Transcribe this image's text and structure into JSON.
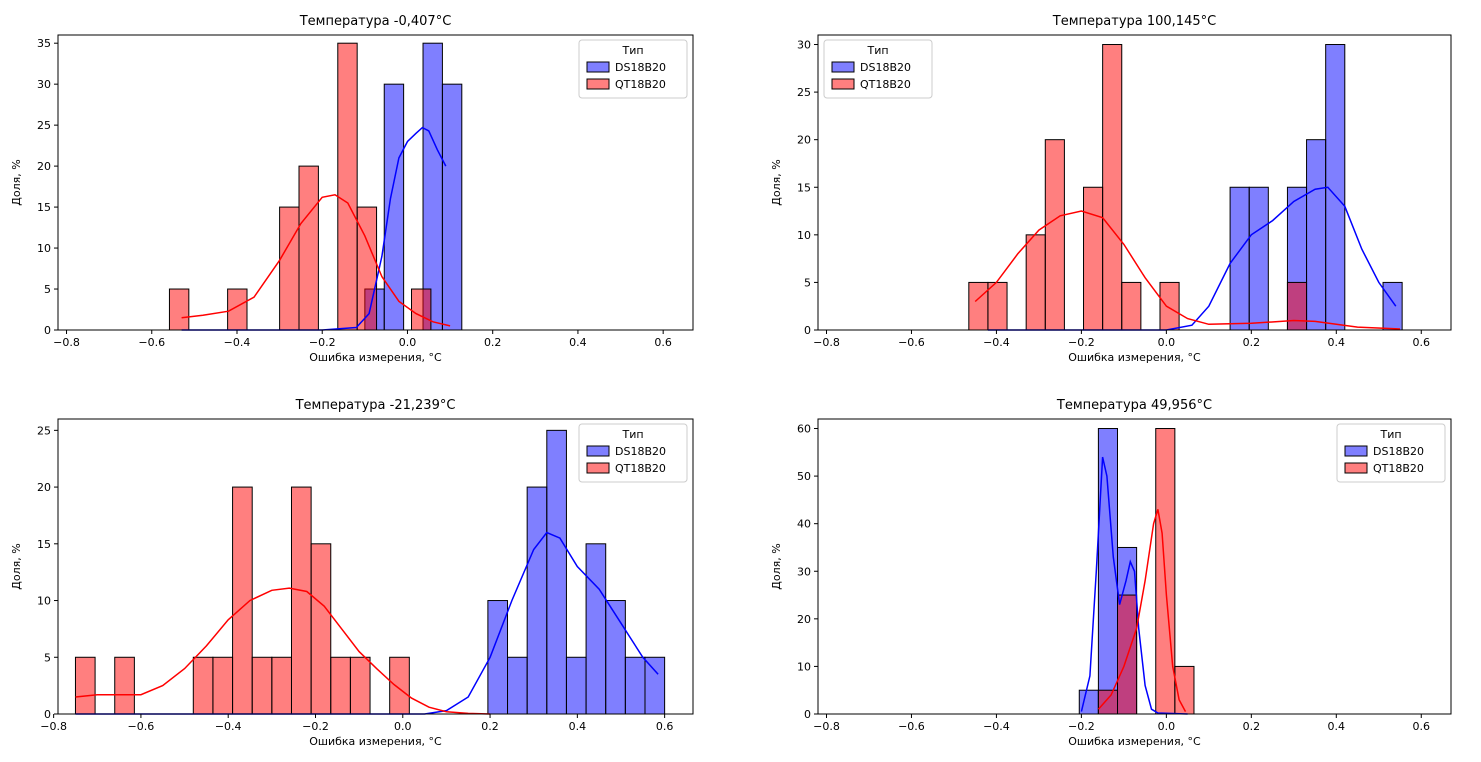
{
  "figure": {
    "xlabel": "Ошибка измерения, °С",
    "ylabel": "Доля, %"
  },
  "chart_data": [
    {
      "type": "histogram",
      "title": "Температура -0,407°С",
      "xlabel": "Ошибка измерения, °С",
      "ylabel": "Доля, %",
      "xlim": [
        -0.82,
        0.67
      ],
      "ylim": [
        0,
        36
      ],
      "xticks": [
        -0.8,
        -0.6,
        -0.4,
        -0.2,
        0.0,
        0.2,
        0.4,
        0.6
      ],
      "xtick_labels": [
        "−0.8",
        "−0.6",
        "−0.4",
        "−0.2",
        "0.0",
        "0.2",
        "0.4",
        "0.6"
      ],
      "yticks": [
        0,
        5,
        10,
        15,
        20,
        25,
        30,
        35
      ],
      "ytick_labels": [
        "0",
        "5",
        "10",
        "15",
        "20",
        "25",
        "30",
        "35"
      ],
      "legend": {
        "title": "Тип",
        "position": "upper-right"
      },
      "series": [
        {
          "name": "DS18B20",
          "color": "#0000ff",
          "bins": [
            [
              -0.1,
              -0.0545,
              5
            ],
            [
              -0.0545,
              -0.009,
              30
            ],
            [
              0.0365,
              0.082,
              35
            ],
            [
              0.082,
              0.1275,
              30
            ]
          ],
          "kde": [
            [
              -0.53,
              0
            ],
            [
              -0.2,
              0
            ],
            [
              -0.12,
              0.3
            ],
            [
              -0.09,
              2
            ],
            [
              -0.06,
              9
            ],
            [
              -0.04,
              16
            ],
            [
              -0.02,
              21
            ],
            [
              0,
              23
            ],
            [
              0.02,
              24
            ],
            [
              0.035,
              24.7
            ],
            [
              0.05,
              24.3
            ],
            [
              0.07,
              22
            ],
            [
              0.09,
              20
            ]
          ]
        },
        {
          "name": "QT18B20",
          "color": "#ff0000",
          "bins": [
            [
              -0.5585,
              -0.513,
              5
            ],
            [
              -0.422,
              -0.3765,
              5
            ],
            [
              -0.3,
              -0.2545,
              15
            ],
            [
              -0.2545,
              -0.209,
              20
            ],
            [
              -0.1635,
              -0.118,
              35
            ],
            [
              -0.118,
              -0.0725,
              15
            ],
            [
              0.0095,
              0.055,
              5
            ]
          ],
          "kde": [
            [
              -0.53,
              1.5
            ],
            [
              -0.48,
              1.8
            ],
            [
              -0.42,
              2.3
            ],
            [
              -0.36,
              4
            ],
            [
              -0.3,
              8.5
            ],
            [
              -0.25,
              13
            ],
            [
              -0.2,
              16.2
            ],
            [
              -0.17,
              16.5
            ],
            [
              -0.14,
              15.5
            ],
            [
              -0.1,
              11.5
            ],
            [
              -0.06,
              6.5
            ],
            [
              -0.02,
              3.5
            ],
            [
              0.02,
              2
            ],
            [
              0.06,
              1
            ],
            [
              0.1,
              0.5
            ]
          ]
        }
      ]
    },
    {
      "type": "histogram",
      "title": "Температура 100,145°С",
      "xlabel": "Ошибка измерения, °С",
      "ylabel": "Доля, %",
      "xlim": [
        -0.82,
        0.67
      ],
      "ylim": [
        0,
        31
      ],
      "xticks": [
        -0.8,
        -0.6,
        -0.4,
        -0.2,
        0.0,
        0.2,
        0.4,
        0.6
      ],
      "xtick_labels": [
        "−0.8",
        "−0.6",
        "−0.4",
        "−0.2",
        "0.0",
        "0.2",
        "0.4",
        "0.6"
      ],
      "yticks": [
        0,
        5,
        10,
        15,
        20,
        25,
        30
      ],
      "ytick_labels": [
        "0",
        "5",
        "10",
        "15",
        "20",
        "25",
        "30"
      ],
      "legend": {
        "title": "Тип",
        "position": "upper-left"
      },
      "series": [
        {
          "name": "DS18B20",
          "color": "#0000ff",
          "bins": [
            [
              0.15,
              0.195,
              15
            ],
            [
              0.195,
              0.24,
              15
            ],
            [
              0.285,
              0.33,
              15
            ],
            [
              0.33,
              0.375,
              20
            ],
            [
              0.375,
              0.42,
              30
            ],
            [
              0.51,
              0.555,
              5
            ]
          ],
          "kde": [
            [
              -0.42,
              0
            ],
            [
              0.0,
              0
            ],
            [
              0.06,
              0.5
            ],
            [
              0.1,
              2.5
            ],
            [
              0.15,
              7
            ],
            [
              0.2,
              10
            ],
            [
              0.25,
              11.5
            ],
            [
              0.3,
              13.5
            ],
            [
              0.35,
              14.8
            ],
            [
              0.38,
              15
            ],
            [
              0.42,
              13
            ],
            [
              0.46,
              8.5
            ],
            [
              0.5,
              5
            ],
            [
              0.54,
              2.5
            ]
          ]
        },
        {
          "name": "QT18B20",
          "color": "#ff0000",
          "bins": [
            [
              -0.465,
              -0.42,
              5
            ],
            [
              -0.42,
              -0.375,
              5
            ],
            [
              -0.33,
              -0.285,
              10
            ],
            [
              -0.285,
              -0.24,
              20
            ],
            [
              -0.195,
              -0.15,
              15
            ],
            [
              -0.15,
              -0.105,
              30
            ],
            [
              -0.105,
              -0.06,
              5
            ],
            [
              -0.015,
              0.03,
              5
            ],
            [
              0.285,
              0.33,
              5
            ]
          ],
          "kde": [
            [
              -0.45,
              3
            ],
            [
              -0.4,
              5
            ],
            [
              -0.35,
              8
            ],
            [
              -0.3,
              10.5
            ],
            [
              -0.25,
              12
            ],
            [
              -0.2,
              12.5
            ],
            [
              -0.15,
              11.8
            ],
            [
              -0.1,
              9
            ],
            [
              -0.05,
              5.5
            ],
            [
              0,
              2.5
            ],
            [
              0.05,
              1.2
            ],
            [
              0.1,
              0.6
            ],
            [
              0.2,
              0.7
            ],
            [
              0.3,
              1
            ],
            [
              0.35,
              0.9
            ],
            [
              0.45,
              0.3
            ],
            [
              0.55,
              0.1
            ]
          ]
        }
      ]
    },
    {
      "type": "histogram",
      "title": "Температура -21,239°С",
      "xlabel": "Ошибка измерения, °С",
      "ylabel": "Доля, %",
      "xlim": [
        -0.79,
        0.665
      ],
      "ylim": [
        0,
        26
      ],
      "xticks": [
        -0.8,
        -0.6,
        -0.4,
        -0.2,
        0.0,
        0.2,
        0.4,
        0.6
      ],
      "xtick_labels": [
        "−0.8",
        "−0.6",
        "−0.4",
        "−0.2",
        "0.0",
        "0.2",
        "0.4",
        "0.6"
      ],
      "yticks": [
        0,
        5,
        10,
        15,
        20,
        25
      ],
      "ytick_labels": [
        "0",
        "5",
        "10",
        "15",
        "20",
        "25"
      ],
      "legend": {
        "title": "Тип",
        "position": "upper-right"
      },
      "series": [
        {
          "name": "DS18B20",
          "color": "#0000ff",
          "bins": [
            [
              0.195,
              0.24,
              10
            ],
            [
              0.24,
              0.285,
              5
            ],
            [
              0.285,
              0.33,
              20
            ],
            [
              0.33,
              0.375,
              25
            ],
            [
              0.375,
              0.42,
              5
            ],
            [
              0.42,
              0.465,
              15
            ],
            [
              0.465,
              0.51,
              10
            ],
            [
              0.51,
              0.555,
              5
            ],
            [
              0.555,
              0.6,
              5
            ]
          ],
          "kde": [
            [
              -0.75,
              0
            ],
            [
              0.05,
              0
            ],
            [
              0.1,
              0.3
            ],
            [
              0.15,
              1.5
            ],
            [
              0.2,
              5
            ],
            [
              0.25,
              10
            ],
            [
              0.3,
              14.5
            ],
            [
              0.33,
              16
            ],
            [
              0.36,
              15.5
            ],
            [
              0.4,
              13
            ],
            [
              0.45,
              11
            ],
            [
              0.5,
              8
            ],
            [
              0.55,
              5
            ],
            [
              0.585,
              3.5
            ]
          ]
        },
        {
          "name": "QT18B20",
          "color": "#ff0000",
          "bins": [
            [
              -0.75,
              -0.705,
              5
            ],
            [
              -0.66,
              -0.615,
              5
            ],
            [
              -0.48,
              -0.435,
              5
            ],
            [
              -0.435,
              -0.39,
              5
            ],
            [
              -0.39,
              -0.345,
              20
            ],
            [
              -0.345,
              -0.3,
              5
            ],
            [
              -0.3,
              -0.255,
              5
            ],
            [
              -0.255,
              -0.21,
              20
            ],
            [
              -0.21,
              -0.165,
              15
            ],
            [
              -0.165,
              -0.12,
              5
            ],
            [
              -0.12,
              -0.075,
              5
            ],
            [
              -0.03,
              0.015,
              5
            ]
          ],
          "kde": [
            [
              -0.75,
              1.5
            ],
            [
              -0.7,
              1.7
            ],
            [
              -0.65,
              1.7
            ],
            [
              -0.6,
              1.7
            ],
            [
              -0.55,
              2.5
            ],
            [
              -0.5,
              4
            ],
            [
              -0.45,
              6
            ],
            [
              -0.4,
              8.3
            ],
            [
              -0.35,
              10
            ],
            [
              -0.3,
              10.9
            ],
            [
              -0.26,
              11.1
            ],
            [
              -0.22,
              10.8
            ],
            [
              -0.18,
              9.5
            ],
            [
              -0.14,
              7.5
            ],
            [
              -0.1,
              5.5
            ],
            [
              -0.06,
              4
            ],
            [
              -0.02,
              2.6
            ],
            [
              0.02,
              1.4
            ],
            [
              0.06,
              0.6
            ],
            [
              0.1,
              0.2
            ],
            [
              0.15,
              0.05
            ],
            [
              0.2,
              0
            ]
          ]
        }
      ]
    },
    {
      "type": "histogram",
      "title": "Температура 49,956°С",
      "xlabel": "Ошибка измерения, °С",
      "ylabel": "Доля, %",
      "xlim": [
        -0.82,
        0.67
      ],
      "ylim": [
        0,
        62
      ],
      "xticks": [
        -0.8,
        -0.6,
        -0.4,
        -0.2,
        0.0,
        0.2,
        0.4,
        0.6
      ],
      "xtick_labels": [
        "−0.8",
        "−0.6",
        "−0.4",
        "−0.2",
        "0.0",
        "0.2",
        "0.4",
        "0.6"
      ],
      "yticks": [
        0,
        10,
        20,
        30,
        40,
        50,
        60
      ],
      "ytick_labels": [
        "0",
        "10",
        "20",
        "30",
        "40",
        "50",
        "60"
      ],
      "legend": {
        "title": "Тип",
        "position": "upper-right"
      },
      "series": [
        {
          "name": "DS18B20",
          "color": "#0000ff",
          "bins": [
            [
              -0.205,
              -0.16,
              5
            ],
            [
              -0.16,
              -0.115,
              60
            ],
            [
              -0.115,
              -0.07,
              35
            ]
          ],
          "kde": [
            [
              -0.2,
              0.5
            ],
            [
              -0.18,
              8
            ],
            [
              -0.165,
              30
            ],
            [
              -0.15,
              54
            ],
            [
              -0.14,
              50
            ],
            [
              -0.125,
              33
            ],
            [
              -0.11,
              23
            ],
            [
              -0.095,
              28
            ],
            [
              -0.085,
              32
            ],
            [
              -0.075,
              30
            ],
            [
              -0.065,
              18
            ],
            [
              -0.05,
              6
            ],
            [
              -0.035,
              1
            ],
            [
              -0.02,
              0.2
            ],
            [
              0.05,
              0
            ]
          ]
        },
        {
          "name": "QT18B20",
          "color": "#ff0000",
          "bins": [
            [
              -0.16,
              -0.115,
              5
            ],
            [
              -0.115,
              -0.07,
              25
            ],
            [
              -0.07,
              -0.025,
              0
            ],
            [
              -0.025,
              0.02,
              60
            ],
            [
              0.02,
              0.065,
              10
            ]
          ],
          "kde": [
            [
              -0.16,
              1
            ],
            [
              -0.13,
              4
            ],
            [
              -0.1,
              10
            ],
            [
              -0.07,
              18
            ],
            [
              -0.05,
              28
            ],
            [
              -0.03,
              40
            ],
            [
              -0.02,
              43
            ],
            [
              -0.01,
              38
            ],
            [
              0,
              25
            ],
            [
              0.015,
              10
            ],
            [
              0.03,
              3
            ],
            [
              0.045,
              0.5
            ]
          ]
        }
      ]
    }
  ]
}
